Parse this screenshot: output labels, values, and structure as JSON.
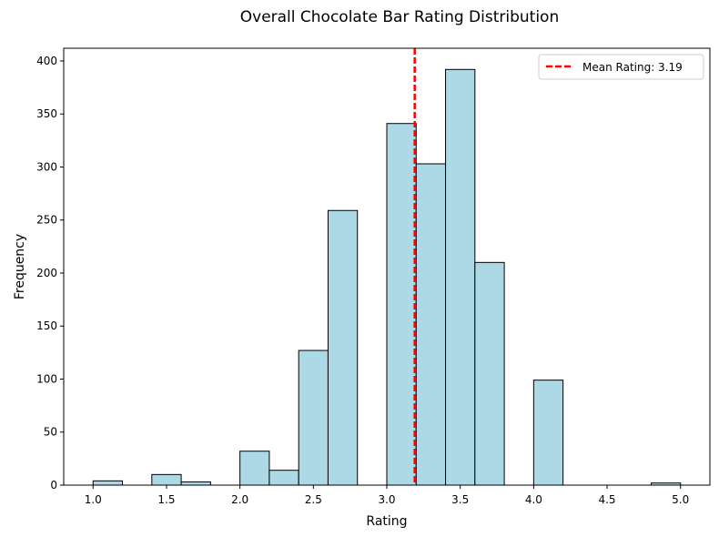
{
  "chart_data": {
    "type": "bar",
    "title": "Overall Chocolate Bar Rating Distribution",
    "xlabel": "Rating",
    "ylabel": "Frequency",
    "xlim": [
      0.8,
      5.2
    ],
    "ylim": [
      0,
      412
    ],
    "x_ticks": [
      "1.0",
      "1.5",
      "2.0",
      "2.5",
      "3.0",
      "3.5",
      "4.0",
      "4.5",
      "5.0"
    ],
    "y_ticks": [
      "0",
      "50",
      "100",
      "150",
      "200",
      "250",
      "300",
      "350",
      "400"
    ],
    "bins": [
      {
        "x0": 1.0,
        "x1": 1.2,
        "value": 4
      },
      {
        "x0": 1.2,
        "x1": 1.4,
        "value": 0
      },
      {
        "x0": 1.4,
        "x1": 1.6,
        "value": 10
      },
      {
        "x0": 1.6,
        "x1": 1.8,
        "value": 3
      },
      {
        "x0": 1.8,
        "x1": 2.0,
        "value": 0
      },
      {
        "x0": 2.0,
        "x1": 2.2,
        "value": 32
      },
      {
        "x0": 2.2,
        "x1": 2.4,
        "value": 14
      },
      {
        "x0": 2.4,
        "x1": 2.6,
        "value": 127
      },
      {
        "x0": 2.6,
        "x1": 2.8,
        "value": 259
      },
      {
        "x0": 2.8,
        "x1": 3.0,
        "value": 0
      },
      {
        "x0": 3.0,
        "x1": 3.2,
        "value": 341
      },
      {
        "x0": 3.2,
        "x1": 3.4,
        "value": 303
      },
      {
        "x0": 3.4,
        "x1": 3.6,
        "value": 392
      },
      {
        "x0": 3.6,
        "x1": 3.8,
        "value": 210
      },
      {
        "x0": 3.8,
        "x1": 4.0,
        "value": 0
      },
      {
        "x0": 4.0,
        "x1": 4.2,
        "value": 99
      },
      {
        "x0": 4.2,
        "x1": 4.4,
        "value": 0
      },
      {
        "x0": 4.4,
        "x1": 4.6,
        "value": 0
      },
      {
        "x0": 4.6,
        "x1": 4.8,
        "value": 0
      },
      {
        "x0": 4.8,
        "x1": 5.0,
        "value": 2
      }
    ],
    "mean_line": {
      "value": 3.19,
      "label": "Mean Rating: 3.19"
    },
    "legend": {
      "placement": "top-right"
    },
    "grid": false,
    "colors": {
      "bar_fill": "#add8e6",
      "bar_edge": "#000000",
      "mean_line": "#ff0000"
    }
  }
}
